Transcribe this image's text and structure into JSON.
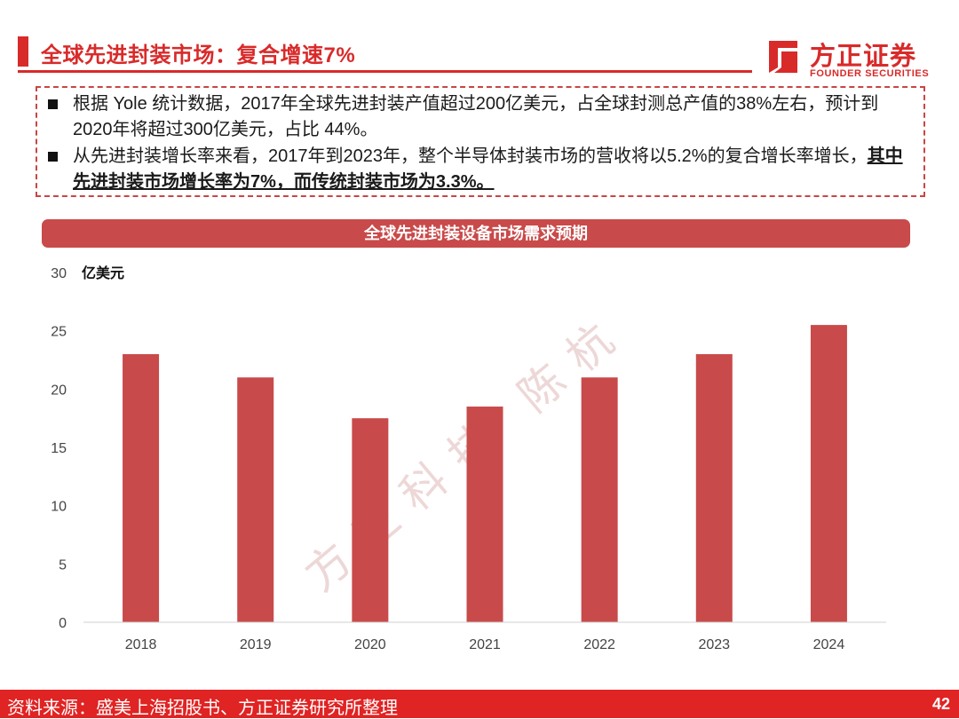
{
  "header": {
    "title": "全球先进封装市场：复合增速7%"
  },
  "logo": {
    "cn": "方正证券",
    "en": "FOUNDER SECURITIES"
  },
  "summary": {
    "bullet1": "根据 Yole 统计数据，2017年全球先进封装产值超过200亿美元，占全球封测总产值的38%左右，预计到2020年将超过300亿美元，占比 44%。",
    "bullet2_plain": "从先进封装增长率来看，2017年到2023年，整个半导体封装市场的营收将以5.2%的复合增长率增长，",
    "bullet2_emphasis": "其中先进封装市场增长率为7%，而传统封装市场为3.3%。"
  },
  "chart_title": "全球先进封装设备市场需求预期",
  "watermark": "方正科技 陈杭",
  "chart_data": {
    "type": "bar",
    "title": "全球先进封装设备市场需求预期",
    "ylabel": "亿美元",
    "xlabel": "",
    "categories": [
      "2018",
      "2019",
      "2020",
      "2021",
      "2022",
      "2023",
      "2024"
    ],
    "values": [
      23,
      21,
      17.5,
      18.5,
      21,
      23,
      25.5
    ],
    "ylim": [
      0,
      30
    ],
    "yticks": [
      0,
      5,
      10,
      15,
      20,
      25,
      30
    ],
    "grid": false,
    "bar_color": "#c94a4a"
  },
  "footer": {
    "source": "资料来源：盛美上海招股书、方正证券研究所整理",
    "page": "42"
  }
}
